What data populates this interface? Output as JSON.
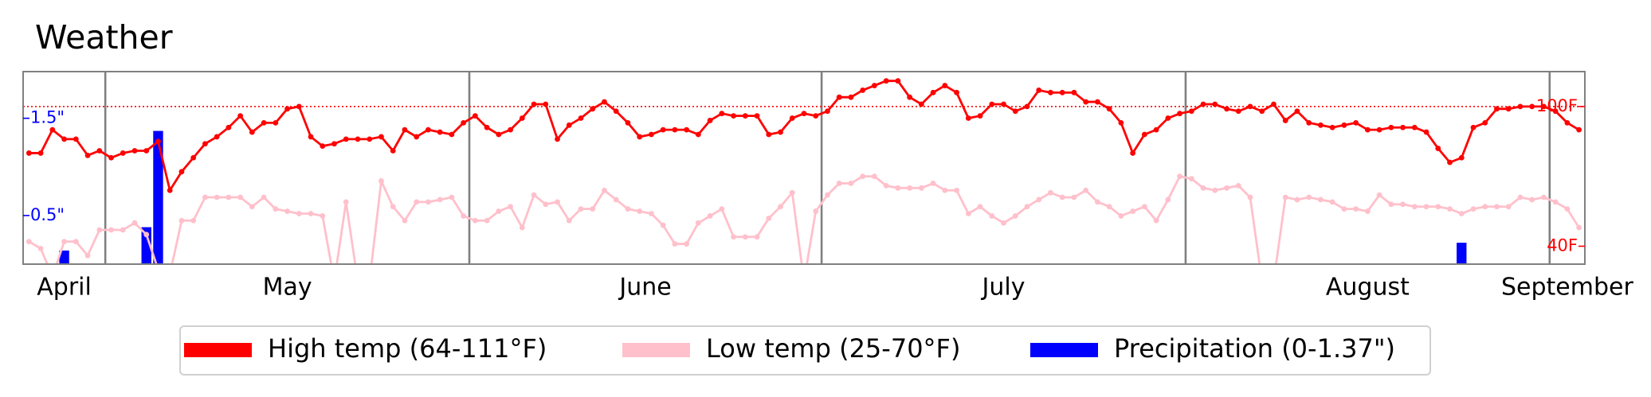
{
  "chart_data": {
    "type": "line",
    "title": "Weather",
    "xlim": [
      0,
      133
    ],
    "xticks": [
      {
        "value": 3.5,
        "label": "April"
      },
      {
        "value": 22.5,
        "label": "May"
      },
      {
        "value": 53,
        "label": "June"
      },
      {
        "value": 83.5,
        "label": "July"
      },
      {
        "value": 114.5,
        "label": "August"
      },
      {
        "value": 131.5,
        "label": "September"
      }
    ],
    "xgrid": [
      7,
      38,
      68,
      99,
      130
    ],
    "ylim": [
      0,
      1.98
    ],
    "yticks": [
      {
        "value": 0.5,
        "label": "0.5\""
      },
      {
        "value": 1.5,
        "label": "1.5\""
      }
    ],
    "y_color": "#0000ff",
    "y2lim": [
      32.3,
      115
    ],
    "y2ticks": [
      {
        "value": 40,
        "label": "40F"
      },
      {
        "value": 100,
        "label": "100F"
      }
    ],
    "y2_color": "#ff0000",
    "reference_line": 100,
    "legend": "bottom",
    "series": [
      {
        "name": "High temp (64-111°F)",
        "color": "#ff0000",
        "axis": "y2",
        "values": [
          80,
          80,
          90,
          86,
          86,
          79,
          81,
          78,
          80,
          81,
          81,
          85,
          64,
          72,
          78,
          84,
          87,
          91,
          96,
          89,
          93,
          93,
          99,
          100,
          87,
          83,
          84,
          86,
          86,
          86,
          87,
          81,
          90,
          87,
          90,
          89,
          88,
          93,
          96,
          91,
          88,
          90,
          95,
          101,
          101,
          86,
          92,
          95,
          99,
          102,
          98,
          93,
          87,
          88,
          90,
          90,
          90,
          88,
          94,
          97,
          96,
          96,
          96,
          88,
          89,
          95,
          97,
          96,
          98,
          104,
          104,
          107,
          109,
          111,
          111,
          104,
          101,
          106,
          109,
          106,
          95,
          96,
          101,
          101,
          98,
          100,
          107,
          106,
          106,
          106,
          102,
          102,
          99,
          93,
          80,
          88,
          90,
          95,
          97,
          98,
          101,
          101,
          99,
          98,
          100,
          98,
          101,
          94,
          98,
          93,
          92,
          91,
          92,
          93,
          90,
          90,
          91,
          91,
          91,
          89,
          82,
          76,
          78,
          91,
          93,
          99,
          99,
          100,
          100,
          100,
          98,
          93,
          90
        ]
      },
      {
        "name": "Low temp (25-70°F)",
        "color": "#ffc0cb",
        "axis": "y2",
        "values": [
          42,
          39,
          27,
          42,
          42,
          36,
          47,
          47,
          47,
          50,
          45,
          30,
          28,
          51,
          51,
          61,
          61,
          61,
          61,
          57,
          61,
          56,
          55,
          54,
          54,
          53,
          25,
          59,
          25,
          25,
          68,
          57,
          51,
          59,
          59,
          60,
          61,
          53,
          51,
          51,
          55,
          57,
          48,
          62,
          58,
          59,
          51,
          56,
          56,
          64,
          60,
          56,
          55,
          54,
          49,
          41,
          41,
          50,
          53,
          56,
          44,
          44,
          44,
          52,
          57,
          63,
          25,
          55,
          62,
          67,
          67,
          70,
          70,
          66,
          65,
          65,
          65,
          67,
          64,
          64,
          54,
          57,
          53,
          50,
          53,
          57,
          60,
          63,
          61,
          61,
          64,
          59,
          57,
          53,
          55,
          57,
          51,
          60,
          70,
          69,
          65,
          64,
          65,
          66,
          61,
          25,
          25,
          61,
          60,
          61,
          60,
          59,
          56,
          56,
          55,
          62,
          58,
          58,
          57,
          57,
          57,
          56,
          54,
          56,
          57,
          57,
          57,
          61,
          60,
          61,
          59,
          56,
          48
        ]
      },
      {
        "name": "Precipitation (0-1.37\")",
        "color": "#0000ff",
        "axis": "y",
        "type": "bar",
        "values": [
          0,
          0,
          0,
          0.14,
          0,
          0,
          0,
          0,
          0,
          0,
          0.38,
          1.37,
          0,
          0,
          0,
          0,
          0,
          0,
          0,
          0,
          0,
          0,
          0,
          0,
          0,
          0,
          0,
          0,
          0,
          0,
          0,
          0,
          0,
          0,
          0,
          0,
          0,
          0,
          0,
          0,
          0,
          0,
          0,
          0,
          0,
          0,
          0,
          0,
          0,
          0,
          0,
          0,
          0,
          0,
          0,
          0,
          0,
          0,
          0,
          0,
          0,
          0,
          0,
          0,
          0,
          0,
          0,
          0,
          0,
          0,
          0,
          0,
          0,
          0,
          0,
          0,
          0,
          0,
          0,
          0,
          0,
          0,
          0,
          0,
          0,
          0,
          0,
          0,
          0,
          0,
          0,
          0,
          0,
          0,
          0,
          0,
          0,
          0,
          0,
          0,
          0,
          0,
          0,
          0,
          0,
          0,
          0,
          0,
          0,
          0,
          0,
          0,
          0,
          0,
          0,
          0,
          0,
          0,
          0,
          0,
          0,
          0,
          0.22,
          0,
          0,
          0,
          0,
          0,
          0,
          0,
          0,
          0,
          0
        ]
      }
    ]
  }
}
